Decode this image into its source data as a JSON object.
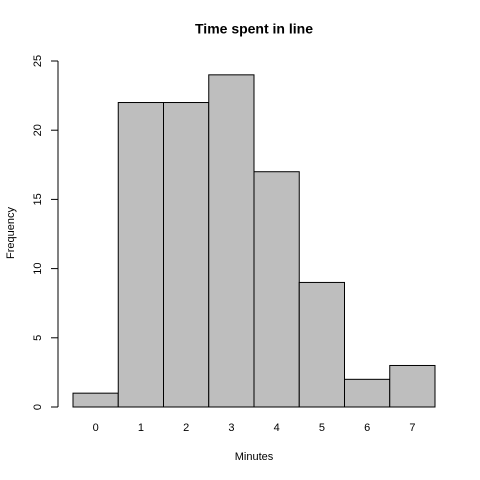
{
  "chart_data": {
    "type": "bar",
    "title": "Time spent in line",
    "x_label": "Minutes",
    "y_label": "Frequency",
    "categories": [
      "0",
      "1",
      "2",
      "3",
      "4",
      "5",
      "6",
      "7"
    ],
    "values": [
      1,
      22,
      22,
      24,
      17,
      9,
      2,
      3
    ],
    "color": "#bebebe",
    "ylim": [
      0,
      25
    ],
    "yticks": [
      0,
      5,
      10,
      15,
      20,
      25
    ]
  }
}
